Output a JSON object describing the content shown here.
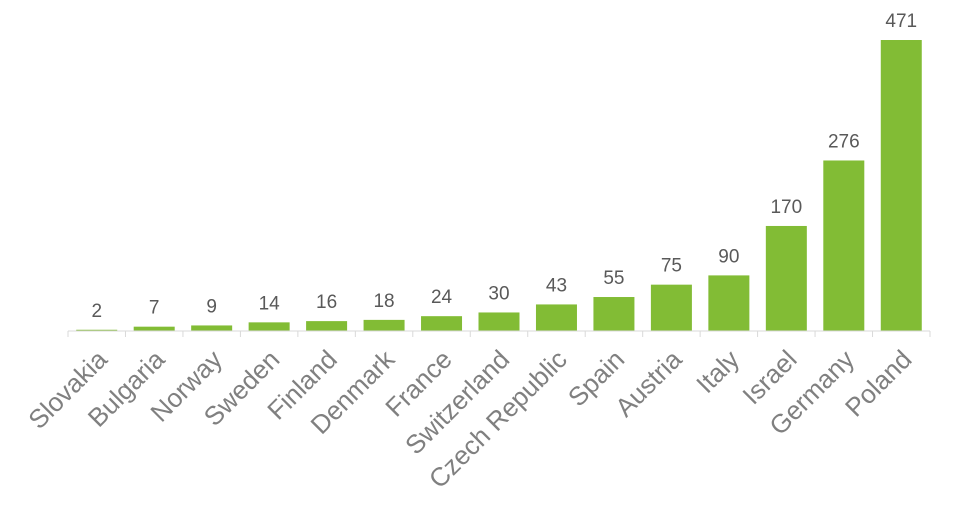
{
  "chart_data": {
    "type": "bar",
    "categories": [
      "Slovakia",
      "Bulgaria",
      "Norway",
      "Sweden",
      "Finland",
      "Denmark",
      "France",
      "Switzerland",
      "Czech Republic",
      "Spain",
      "Austria",
      "Italy",
      "Israel",
      "Germany",
      "Poland"
    ],
    "values": [
      2,
      7,
      9,
      14,
      16,
      18,
      24,
      30,
      43,
      55,
      75,
      90,
      170,
      276,
      471
    ],
    "title": "",
    "xlabel": "",
    "ylabel": "",
    "ylim": [
      0,
      471
    ],
    "grid": false,
    "legend": "none",
    "bar_color": "#82BC35",
    "label_color": "#595959",
    "category_color": "#808080"
  }
}
